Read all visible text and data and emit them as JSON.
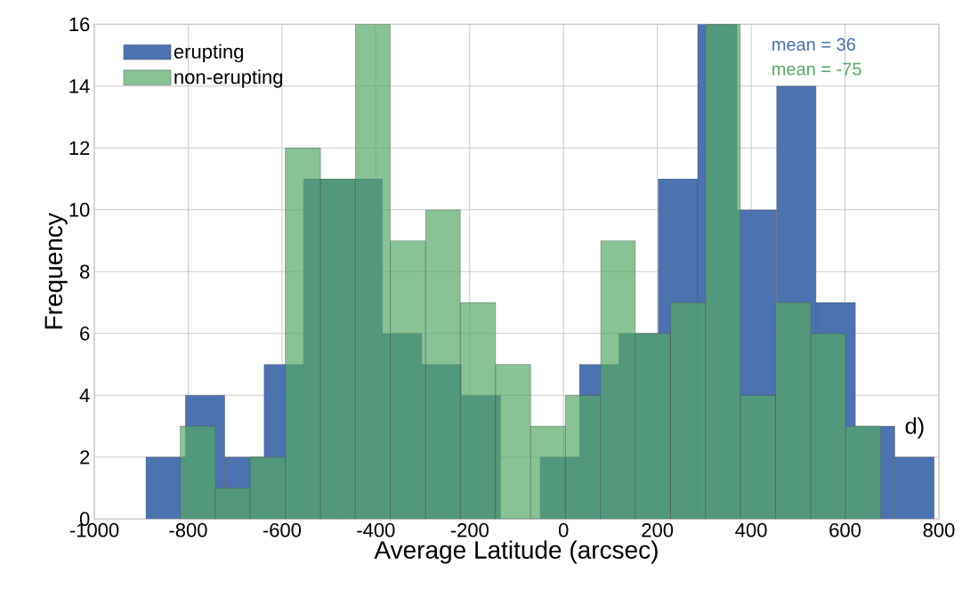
{
  "chart_data": {
    "type": "histogram",
    "xlabel": "Average Latitude (arcsec)",
    "ylabel": "Frequency",
    "series": [
      {
        "name": "erupting",
        "color": "#4c72b0",
        "values": [
          2,
          4,
          2,
          5,
          11,
          11,
          6,
          5,
          4,
          0,
          2,
          5,
          6,
          11,
          16,
          10,
          14,
          7,
          3,
          2
        ]
      },
      {
        "name": "non-erupting",
        "color": "#55a868",
        "bins": [
          -817,
          -742,
          -668,
          -593,
          -518,
          -444,
          -369,
          -294,
          -220,
          -145,
          -70,
          4,
          79,
          153,
          228,
          303,
          377,
          452,
          527,
          601,
          676
        ],
        "values": [
          3,
          1,
          2,
          12,
          11,
          16,
          9,
          10,
          7,
          5,
          3,
          4,
          9,
          6,
          7,
          16,
          4,
          7,
          6,
          3
        ]
      }
    ],
    "bins": [
      -890,
      -806,
      -722,
      -638,
      -554,
      -470,
      -386,
      -302,
      -218,
      -134,
      -50,
      34,
      118,
      202,
      286,
      370,
      454,
      538,
      622,
      706,
      790
    ],
    "xlim": [
      -1000,
      800
    ],
    "xticks": [
      -1000,
      -800,
      -600,
      -400,
      -200,
      0,
      200,
      400,
      600,
      800
    ],
    "ylim": [
      0,
      16
    ],
    "yticks": [
      0,
      2,
      4,
      6,
      8,
      10,
      12,
      14,
      16
    ],
    "grid": true,
    "legend": "top left",
    "annotations": [
      "mean = 36",
      "mean = -75",
      "d)"
    ]
  }
}
